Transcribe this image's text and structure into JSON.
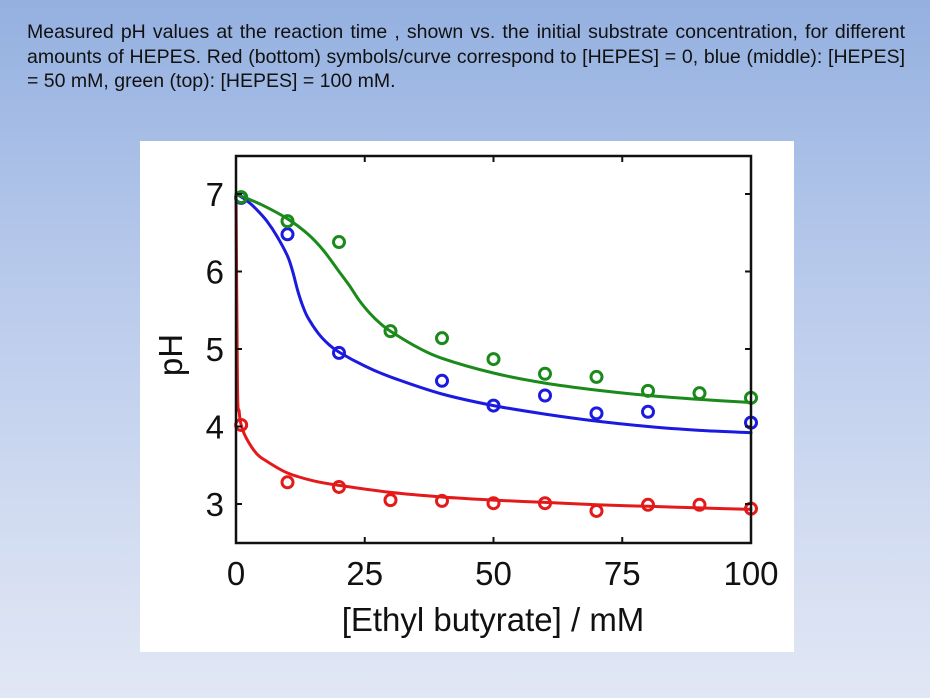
{
  "slide": {
    "caption": "Measured pH values at the reaction time , shown vs. the initial substrate concentration, for different amounts of HEPES. Red (bottom) symbols/curve correspond to [HEPES] = 0, blue (middle): [HEPES] = 50 mM, green (top): [HEPES] = 100 mM."
  },
  "chart_data": {
    "type": "scatter",
    "title": "",
    "xlabel": "[Ethyl butyrate] / mM",
    "ylabel": "pH",
    "xlim": [
      0,
      100
    ],
    "ylim": [
      2.5,
      7.5
    ],
    "xticks": [
      0,
      25,
      50,
      75,
      100
    ],
    "xtick_labels": [
      "0",
      "25",
      "50",
      "75",
      "100"
    ],
    "yticks": [
      3,
      4,
      5,
      6,
      7
    ],
    "ytick_labels": [
      "3",
      "4",
      "5",
      "6",
      "7"
    ],
    "grid": false,
    "legend": "none",
    "series": [
      {
        "name": "[HEPES] = 0",
        "color": "#e41a1a",
        "points": {
          "x": [
            1,
            10,
            20,
            30,
            40,
            50,
            60,
            70,
            80,
            90,
            100
          ],
          "y": [
            4.02,
            3.28,
            3.22,
            3.05,
            3.04,
            3.01,
            3.01,
            2.91,
            2.99,
            2.99,
            2.94
          ]
        },
        "curve": {
          "x": [
            0,
            0.3,
            0.6,
            1,
            2,
            4,
            6,
            10,
            15,
            20,
            30,
            40,
            50,
            60,
            70,
            80,
            90,
            100
          ],
          "y": [
            7.0,
            4.5,
            4.2,
            4.02,
            3.85,
            3.65,
            3.55,
            3.4,
            3.3,
            3.24,
            3.15,
            3.09,
            3.05,
            3.02,
            2.99,
            2.97,
            2.95,
            2.93
          ]
        }
      },
      {
        "name": "[HEPES] = 50 mM",
        "color": "#1a1ae0",
        "points": {
          "x": [
            1,
            10,
            20,
            40,
            50,
            60,
            70,
            80,
            100
          ],
          "y": [
            6.95,
            6.48,
            4.95,
            4.59,
            4.27,
            4.4,
            4.17,
            4.19,
            4.05
          ]
        },
        "curve": {
          "x": [
            0,
            2,
            4,
            6,
            8,
            10,
            11,
            12,
            13,
            14,
            16,
            18,
            20,
            25,
            30,
            40,
            50,
            60,
            70,
            80,
            90,
            100
          ],
          "y": [
            7.0,
            6.92,
            6.8,
            6.65,
            6.45,
            6.2,
            6.0,
            5.75,
            5.55,
            5.4,
            5.2,
            5.06,
            4.96,
            4.78,
            4.64,
            4.42,
            4.27,
            4.16,
            4.07,
            4.0,
            3.95,
            3.92
          ]
        }
      },
      {
        "name": "[HEPES] = 100 mM",
        "color": "#1a8a1a",
        "points": {
          "x": [
            1,
            10,
            20,
            30,
            40,
            50,
            60,
            70,
            80,
            90,
            100
          ],
          "y": [
            6.96,
            6.65,
            6.38,
            5.23,
            5.14,
            4.87,
            4.68,
            4.64,
            4.46,
            4.43,
            4.37
          ]
        },
        "curve": {
          "x": [
            0,
            5,
            10,
            14,
            17,
            20,
            22,
            24,
            26,
            28,
            30,
            35,
            40,
            50,
            60,
            70,
            80,
            90,
            100
          ],
          "y": [
            7.0,
            6.86,
            6.68,
            6.48,
            6.27,
            6.0,
            5.82,
            5.62,
            5.46,
            5.33,
            5.23,
            5.03,
            4.88,
            4.69,
            4.56,
            4.47,
            4.4,
            4.35,
            4.31
          ]
        }
      }
    ]
  }
}
